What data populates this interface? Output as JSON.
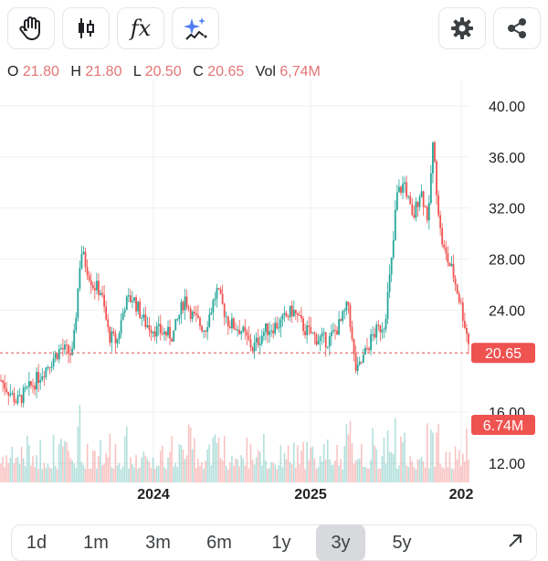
{
  "toolbar": {
    "left_buttons": [
      "hand-icon",
      "candlestick-icon",
      "fx-icon",
      "sparkle-icon"
    ],
    "right_buttons": [
      "gear-icon",
      "share-icon"
    ],
    "fx_label": "fx"
  },
  "ohlc": {
    "open_label": "O",
    "open": "21.80",
    "high_label": "H",
    "high": "21.80",
    "low_label": "L",
    "low": "20.50",
    "close_label": "C",
    "close": "20.65",
    "vol_label": "Vol",
    "vol": "6,74M"
  },
  "colors": {
    "up": "#26a69a",
    "down": "#ef5350",
    "accent": "#e57373",
    "grid": "#eef0f2"
  },
  "chart_data": {
    "type": "candlestick",
    "y_ticks": [
      "40.00",
      "36.00",
      "32.00",
      "28.00",
      "24.00",
      "16.00",
      "12.00"
    ],
    "ylim": [
      10.5,
      42
    ],
    "x_ticks": [
      "2024",
      "2025",
      "202"
    ],
    "price_badge": "20.65",
    "price_line": 20.65,
    "volume_badge": "6.74M",
    "grid": true,
    "price_path": [
      [
        0,
        18.5
      ],
      [
        4,
        16.8
      ],
      [
        8,
        18.2
      ],
      [
        12,
        19.8
      ],
      [
        15,
        21.0
      ],
      [
        18,
        20.5
      ],
      [
        20,
        28.7
      ],
      [
        23,
        26.0
      ],
      [
        25,
        25.5
      ],
      [
        27,
        22.0
      ],
      [
        29,
        21.5
      ],
      [
        31,
        24.5
      ],
      [
        33,
        25.0
      ],
      [
        36,
        23.0
      ],
      [
        39,
        22.4
      ],
      [
        43,
        22.0
      ],
      [
        46,
        25.0
      ],
      [
        48,
        23.5
      ],
      [
        51,
        22.5
      ],
      [
        54,
        25.5
      ],
      [
        57,
        23.0
      ],
      [
        60,
        22.5
      ],
      [
        63,
        21.0
      ],
      [
        66,
        22.4
      ],
      [
        70,
        23.0
      ],
      [
        73,
        24.0
      ],
      [
        76,
        22.5
      ],
      [
        79,
        21.8
      ],
      [
        82,
        21.6
      ],
      [
        85,
        23.0
      ],
      [
        87,
        24.5
      ],
      [
        88,
        21.0
      ],
      [
        89,
        19.0
      ],
      [
        91,
        20.5
      ],
      [
        93,
        22.0
      ],
      [
        96,
        23.0
      ],
      [
        98,
        28.5
      ],
      [
        99,
        33.0
      ],
      [
        101,
        34.0
      ],
      [
        103,
        31.0
      ],
      [
        105,
        33.5
      ],
      [
        107,
        31.0
      ],
      [
        108,
        37.2
      ],
      [
        110,
        30.0
      ],
      [
        111,
        28.5
      ],
      [
        113,
        27.0
      ],
      [
        115,
        24.5
      ],
      [
        117,
        21.5
      ]
    ],
    "volume_level": [
      0.18,
      0.7
    ]
  },
  "range_selector": {
    "items": [
      "1d",
      "1m",
      "3m",
      "6m",
      "1y",
      "3y",
      "5y"
    ],
    "active": "3y",
    "expand_icon": "expand-icon"
  }
}
